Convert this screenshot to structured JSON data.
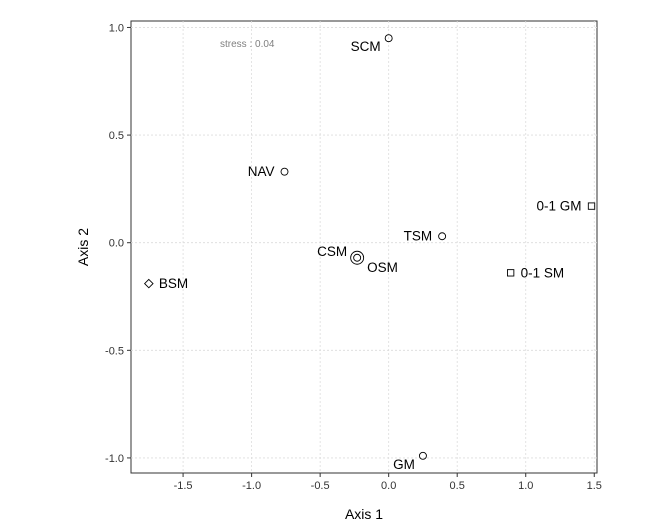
{
  "chart_data": {
    "type": "scatter",
    "xlabel": "Axis 1",
    "ylabel": "Axis 2",
    "xlim": [
      -1.88,
      1.52
    ],
    "ylim": [
      -1.07,
      1.03
    ],
    "x_ticks": [
      -1.5,
      -1.0,
      -0.5,
      0.0,
      0.5,
      1.0,
      1.5
    ],
    "x_tick_labels": [
      "-1.5",
      "-1.0",
      "-0.5",
      "0.0",
      "0.5",
      "1.0",
      "1.5"
    ],
    "y_ticks": [
      -1.0,
      -0.5,
      0.0,
      0.5,
      1.0
    ],
    "y_tick_labels": [
      "-1.0",
      "-0.5",
      "0.0",
      "0.5",
      "1.0"
    ],
    "grid": true,
    "grid_style": "dashed",
    "annotation": "stress : 0.04",
    "points": [
      {
        "label": "SCM",
        "x": 0.0,
        "y": 0.95,
        "marker": "circle",
        "label_pos": "left-below"
      },
      {
        "label": "NAV",
        "x": -0.76,
        "y": 0.33,
        "marker": "circle",
        "label_pos": "left"
      },
      {
        "label": "TSM",
        "x": 0.39,
        "y": 0.03,
        "marker": "circle",
        "label_pos": "left"
      },
      {
        "label": "CSM",
        "x": -0.23,
        "y": -0.07,
        "marker": "circle",
        "label_pos": "left-above"
      },
      {
        "label": "OSM",
        "x": -0.23,
        "y": -0.07,
        "marker": "circle",
        "label_pos": "right-below"
      },
      {
        "label": "BSM",
        "x": -1.75,
        "y": -0.19,
        "marker": "diamond",
        "label_pos": "right"
      },
      {
        "label": "0-1 GM",
        "x": 1.48,
        "y": 0.17,
        "marker": "square",
        "label_pos": "left"
      },
      {
        "label": "0-1 SM",
        "x": 0.89,
        "y": -0.14,
        "marker": "square",
        "label_pos": "right"
      },
      {
        "label": "GM",
        "x": 0.25,
        "y": -0.99,
        "marker": "circle",
        "label_pos": "left-below"
      }
    ]
  }
}
